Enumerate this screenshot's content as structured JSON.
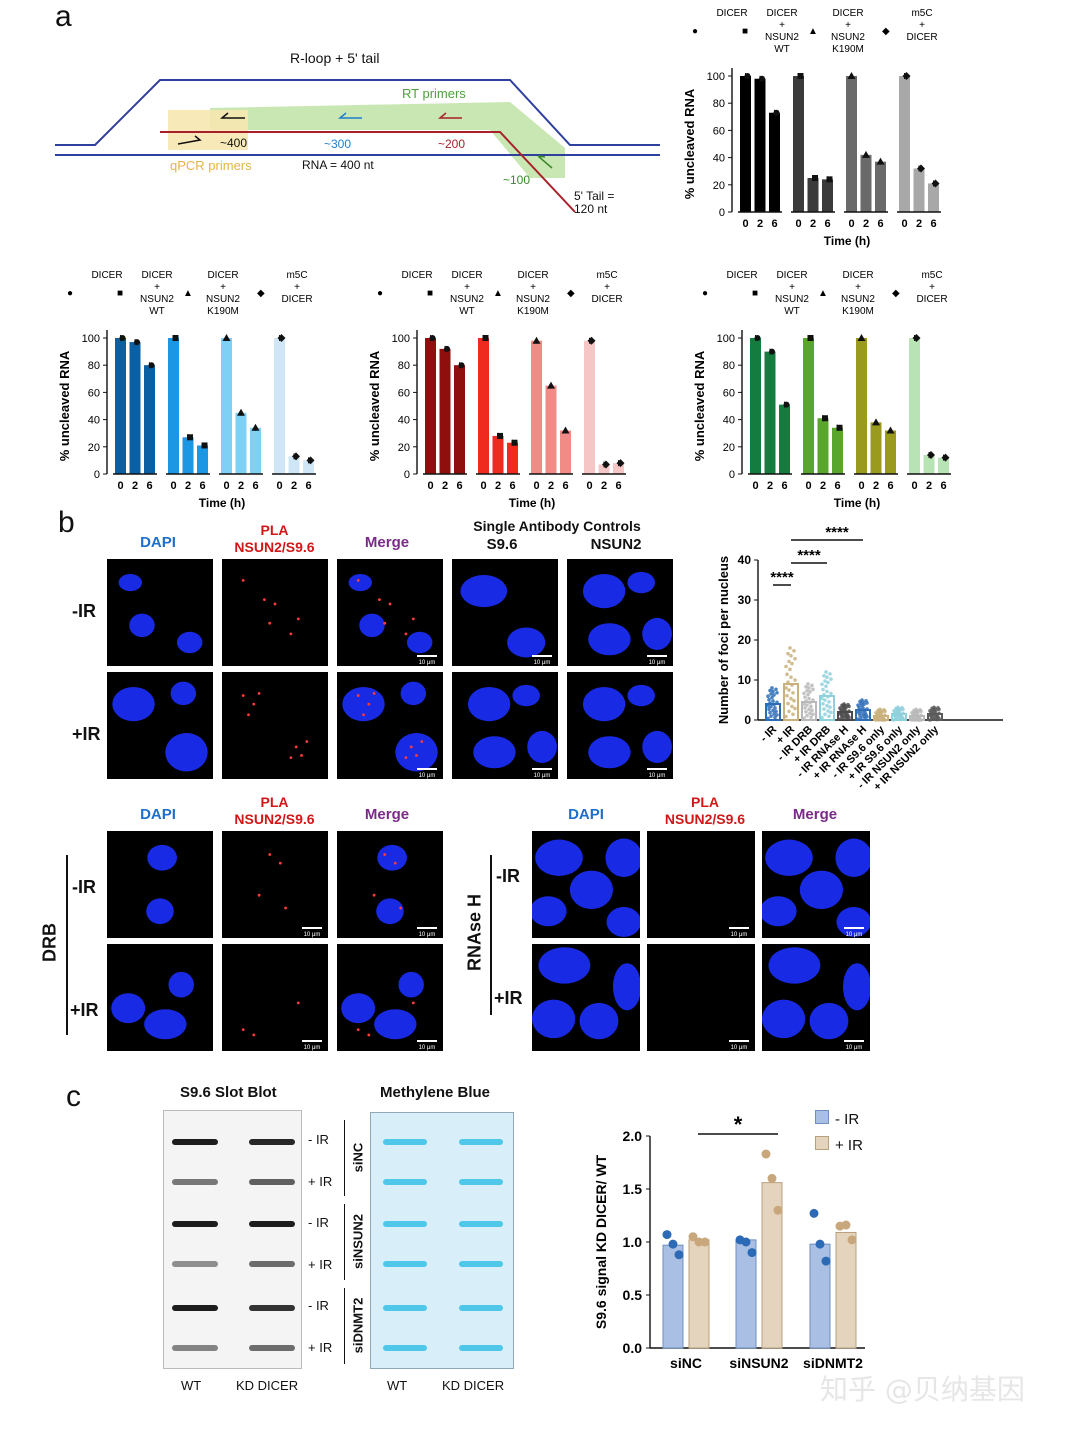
{
  "panels": {
    "a": "a",
    "b": "b",
    "c": "c"
  },
  "schematic": {
    "title": "R-loop + 5' tail",
    "rt_primers": "RT primers",
    "qpcr_primers": "qPCR primers",
    "rna_label": "RNA = 400 nt",
    "tail_label": "5' Tail =",
    "tail_len": "120 nt",
    "pos400": "~400",
    "pos300": "~300",
    "pos200": "~200",
    "pos100": "~100",
    "colors": {
      "dna": "#2f3f9e",
      "rna": "#a8202a",
      "rt": "#bfe3a5",
      "qpcr": "#f7e7b0"
    }
  },
  "cleavage_common": {
    "ylabel": "% uncleaved RNA",
    "xlabel": "Time (h)",
    "ticks_x": [
      "0",
      "2",
      "6"
    ],
    "ticks_y": [
      "0",
      "20",
      "40",
      "60",
      "80",
      "100"
    ],
    "legend": [
      {
        "marker": "●",
        "lines": [
          "DICER"
        ]
      },
      {
        "marker": "■",
        "lines": [
          "DICER",
          "+",
          "NSUN2",
          "WT"
        ]
      },
      {
        "marker": "▲",
        "lines": [
          "DICER",
          "+",
          "NSUN2",
          "K190M"
        ]
      },
      {
        "marker": "◆",
        "lines": [
          "m5C",
          "+",
          "DICER"
        ]
      }
    ]
  },
  "chart_data": [
    {
      "type": "bar",
      "panel": "a-top-right",
      "ylabel": "% uncleaved RNA",
      "xlabel": "Time (h)",
      "ylim": [
        0,
        100
      ],
      "categories": [
        "0",
        "2",
        "6"
      ],
      "series": [
        {
          "name": "DICER",
          "values": [
            100,
            98,
            73
          ],
          "color": "#000000"
        },
        {
          "name": "DICER + NSUN2 WT",
          "values": [
            100,
            25,
            24
          ],
          "color": "#3b3b3b"
        },
        {
          "name": "DICER + NSUN2 K190M",
          "values": [
            100,
            42,
            37
          ],
          "color": "#6a6a6a"
        },
        {
          "name": "m5C + DICER",
          "values": [
            100,
            32,
            21
          ],
          "color": "#a8a8a8"
        }
      ]
    },
    {
      "type": "bar",
      "panel": "a-blue",
      "ylabel": "% uncleaved RNA",
      "xlabel": "Time (h)",
      "ylim": [
        0,
        100
      ],
      "categories": [
        "0",
        "2",
        "6"
      ],
      "series": [
        {
          "name": "DICER",
          "values": [
            100,
            97,
            80
          ],
          "color": "#0b5fa3"
        },
        {
          "name": "DICER + NSUN2 WT",
          "values": [
            100,
            27,
            21
          ],
          "color": "#1c97e3"
        },
        {
          "name": "DICER + NSUN2 K190M",
          "values": [
            100,
            45,
            34
          ],
          "color": "#7fd0f5"
        },
        {
          "name": "m5C + DICER",
          "values": [
            100,
            13,
            10
          ],
          "color": "#cfe6f6"
        }
      ]
    },
    {
      "type": "bar",
      "panel": "a-red",
      "ylabel": "% uncleaved RNA",
      "xlabel": "Time (h)",
      "ylim": [
        0,
        100
      ],
      "categories": [
        "0",
        "2",
        "6"
      ],
      "series": [
        {
          "name": "DICER",
          "values": [
            100,
            92,
            80
          ],
          "color": "#8f0e0e"
        },
        {
          "name": "DICER + NSUN2 WT",
          "values": [
            100,
            28,
            23
          ],
          "color": "#ef2a1f"
        },
        {
          "name": "DICER + NSUN2 K190M",
          "values": [
            98,
            65,
            32
          ],
          "color": "#f08b86"
        },
        {
          "name": "m5C + DICER",
          "values": [
            98,
            7,
            8
          ],
          "color": "#f6c6c6"
        }
      ]
    },
    {
      "type": "bar",
      "panel": "a-green",
      "ylabel": "% uncleaved RNA",
      "xlabel": "Time (h)",
      "ylim": [
        0,
        100
      ],
      "categories": [
        "0",
        "2",
        "6"
      ],
      "series": [
        {
          "name": "DICER",
          "values": [
            100,
            90,
            51
          ],
          "color": "#137c3e"
        },
        {
          "name": "DICER + NSUN2 WT",
          "values": [
            100,
            41,
            34
          ],
          "color": "#58a62d"
        },
        {
          "name": "DICER + NSUN2 K190M",
          "values": [
            100,
            38,
            32
          ],
          "color": "#9a9a1e"
        },
        {
          "name": "m5C + DICER",
          "values": [
            100,
            14,
            12
          ],
          "color": "#b8e3b5"
        }
      ]
    },
    {
      "type": "bar",
      "panel": "b-foci",
      "ylabel": "Number of foci per nucleus",
      "ylim": [
        0,
        40
      ],
      "ticks_y": [
        "0",
        "10",
        "20",
        "30",
        "40"
      ],
      "categories": [
        "- IR",
        "+ IR",
        "- IR DRB",
        "+ IR DRB",
        "- IR RNAse H",
        "+ IR RNAse H",
        "- IR S9.6 only",
        "+ IR S9.6 only",
        "- IR NSUN2 only",
        "+ IR NSUN2 only"
      ],
      "values": [
        4,
        9,
        4.5,
        6,
        2,
        2.5,
        1,
        1.5,
        1,
        1.5
      ],
      "colors": [
        "#2b6cb7",
        "#c9b07d",
        "#b9b9b9",
        "#8fd0dd",
        "#4a4a4a",
        "#2f6fb8",
        "#c9b07d",
        "#8fd0dd",
        "#b9b9b9",
        "#5a5a5a"
      ],
      "significance": [
        {
          "from": "- IR",
          "to": "+ IR",
          "label": "****"
        },
        {
          "from": "+ IR",
          "to": "+ IR DRB",
          "label": "****"
        },
        {
          "from": "+ IR",
          "to": "+ IR RNAse H",
          "label": "****"
        }
      ]
    },
    {
      "type": "bar",
      "panel": "c-signal",
      "ylabel": "S9.6 signal KD DICER/ WT",
      "ylim": [
        0,
        2.0
      ],
      "ticks_y": [
        "0.0",
        "0.5",
        "1.0",
        "1.5",
        "2.0"
      ],
      "categories": [
        "siNC",
        "siNSUN2",
        "siDNMT2"
      ],
      "series": [
        {
          "name": "- IR",
          "values": [
            0.97,
            1.02,
            0.98
          ],
          "points": [
            [
              1.07,
              0.98,
              0.88
            ],
            [
              1.02,
              1.0,
              0.9
            ],
            [
              1.27,
              0.98,
              0.82
            ]
          ],
          "color": "#a9bfe3",
          "point_color": "#2c6ab6"
        },
        {
          "name": "+ IR",
          "values": [
            1.02,
            1.56,
            1.09
          ],
          "points": [
            [
              1.05,
              1.0,
              1.0
            ],
            [
              1.83,
              1.6,
              1.3
            ],
            [
              1.15,
              1.16,
              1.02
            ]
          ],
          "color": "#e4d4bd",
          "point_color": "#c9a77d"
        }
      ],
      "significance": [
        {
          "label": "*"
        }
      ]
    }
  ],
  "micro": {
    "dapi": "DAPI",
    "pla1": "PLA",
    "pla2": "NSUN2/S9.6",
    "merge": "Merge",
    "single_controls": "Single Antibody Controls",
    "s96": "S9.6",
    "nsun2": "NSUN2",
    "minus_ir": "-IR",
    "plus_ir": "+IR",
    "drb": "DRB",
    "rnase": "RNAse H",
    "scale": "10 μm"
  },
  "blot": {
    "slot_title": "S9.6 Slot Blot",
    "mb_title": "Methylene Blue",
    "wt": "WT",
    "kd": "KD DICER",
    "rows": [
      "- IR",
      "+ IR",
      "- IR",
      "+ IR",
      "- IR",
      "+ IR"
    ],
    "groups": [
      "siNC",
      "siNSUN2",
      "siDNMT2"
    ]
  },
  "legend_c": [
    "- IR",
    "+ IR"
  ],
  "watermark": "知乎 @贝纳基因"
}
